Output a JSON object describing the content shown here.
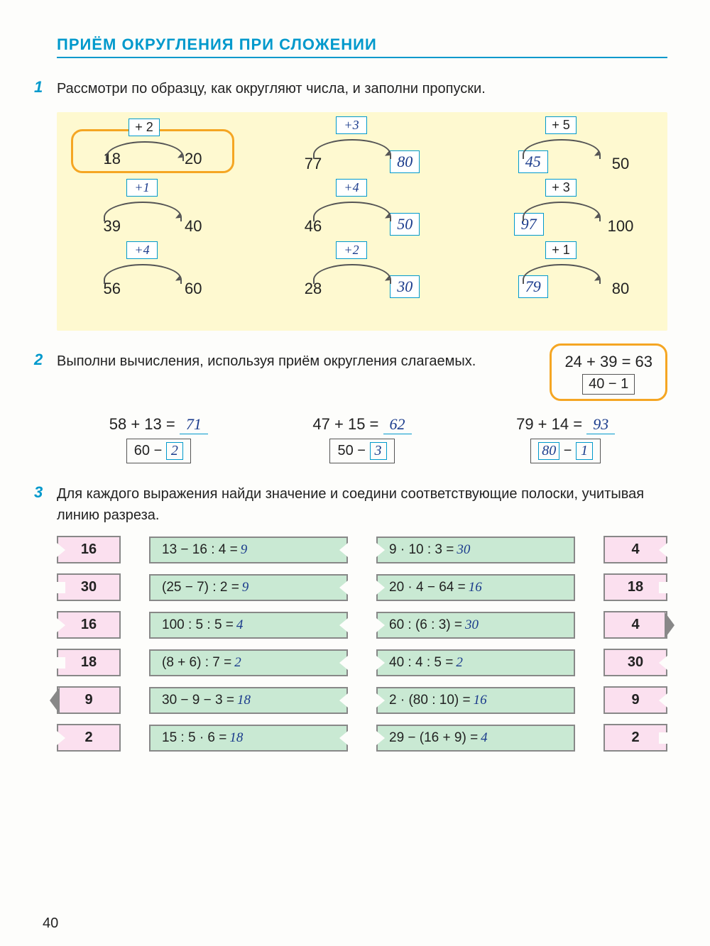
{
  "title": "ПРИЁМ ОКРУГЛЕНИЯ ПРИ СЛОЖЕНИИ",
  "page_number": "40",
  "ex1": {
    "num": "1",
    "text": "Рассмотри по образцу, как округляют числа, и заполни пропуски.",
    "rows": [
      [
        {
          "from": "18",
          "label": "+ 2",
          "to": "20",
          "framed": true,
          "label_hand": false,
          "to_box": false
        },
        {
          "from": "77",
          "label": "+3",
          "to": "80",
          "framed": false,
          "label_hand": true,
          "to_box": true
        },
        {
          "from": "45",
          "label": "+ 5",
          "to": "50",
          "framed": false,
          "label_hand": false,
          "to_box": false,
          "from_box": true
        }
      ],
      [
        {
          "from": "39",
          "label": "+1",
          "to": "40",
          "framed": false,
          "label_hand": true,
          "to_box": false
        },
        {
          "from": "46",
          "label": "+4",
          "to": "50",
          "framed": false,
          "label_hand": true,
          "to_box": true
        },
        {
          "from": "97",
          "label": "+ 3",
          "to": "100",
          "framed": false,
          "label_hand": false,
          "to_box": false,
          "from_box": true
        }
      ],
      [
        {
          "from": "56",
          "label": "+4",
          "to": "60",
          "framed": false,
          "label_hand": true,
          "to_box": false
        },
        {
          "from": "28",
          "label": "+2",
          "to": "30",
          "framed": false,
          "label_hand": true,
          "to_box": true
        },
        {
          "from": "79",
          "label": "+ 1",
          "to": "80",
          "framed": false,
          "label_hand": false,
          "to_box": false,
          "from_box": true
        }
      ]
    ]
  },
  "ex2": {
    "num": "2",
    "text": "Выполни вычисления, используя приём округления слагаемых.",
    "example": {
      "expr": "24 + 39 = 63",
      "sub": "40 − 1"
    },
    "items": [
      {
        "expr": "58 + 13 =",
        "ans": "71",
        "sub_a": "60",
        "sub_op": "−",
        "sub_b": "2",
        "sub_a_hand": false,
        "sub_b_hand": true
      },
      {
        "expr": "47 + 15 =",
        "ans": "62",
        "sub_a": "50",
        "sub_op": "−",
        "sub_b": "3",
        "sub_a_hand": false,
        "sub_b_hand": true
      },
      {
        "expr": "79 + 14 =",
        "ans": "93",
        "sub_a": "80",
        "sub_op": "−",
        "sub_b": "1",
        "sub_a_hand": true,
        "sub_b_hand": true
      }
    ]
  },
  "ex3": {
    "num": "3",
    "text": "Для каждого выражения найди значение и соедини соответствующие полоски, учитывая линию разреза.",
    "rows": [
      {
        "l": "16",
        "m1": "13 − 16 : 4 =",
        "a1": "9",
        "m2": "9 · 10 : 3 =",
        "a2": "30",
        "r": "4",
        "nl": "v",
        "nr": "v"
      },
      {
        "l": "30",
        "m1": "(25 − 7) : 2 =",
        "a1": "9",
        "m2": "20 · 4 − 64 =",
        "a2": "16",
        "r": "18",
        "nl": "sq",
        "nr": "sq"
      },
      {
        "l": "16",
        "m1": "100 : 5 : 5 =",
        "a1": "4",
        "m2": "60 : (6 : 3) =",
        "a2": "30",
        "r": "4",
        "nl": "v",
        "nr": "arr"
      },
      {
        "l": "18",
        "m1": "(8 + 6) : 7 =",
        "a1": "2",
        "m2": "40 : 4 : 5 =",
        "a2": "2",
        "r": "30",
        "nl": "sq",
        "nr": "v"
      },
      {
        "l": "9",
        "m1": "30 − 9 − 3 =",
        "a1": "18",
        "m2": "2 · (80 : 10) =",
        "a2": "16",
        "r": "9",
        "nl": "arr",
        "nr": "v"
      },
      {
        "l": "2",
        "m1": "15 : 5 · 6 =",
        "a1": "18",
        "m2": "29 − (16 + 9) =",
        "a2": "4",
        "r": "2",
        "nl": "v",
        "nr": "sq"
      }
    ]
  },
  "colors": {
    "accent": "#0099cc",
    "orange_frame": "#f5a623",
    "yellow_bg": "#fef9d0",
    "pink": "#fbe0ef",
    "green": "#c9e9d3",
    "handwriting": "#1a3b8c"
  }
}
